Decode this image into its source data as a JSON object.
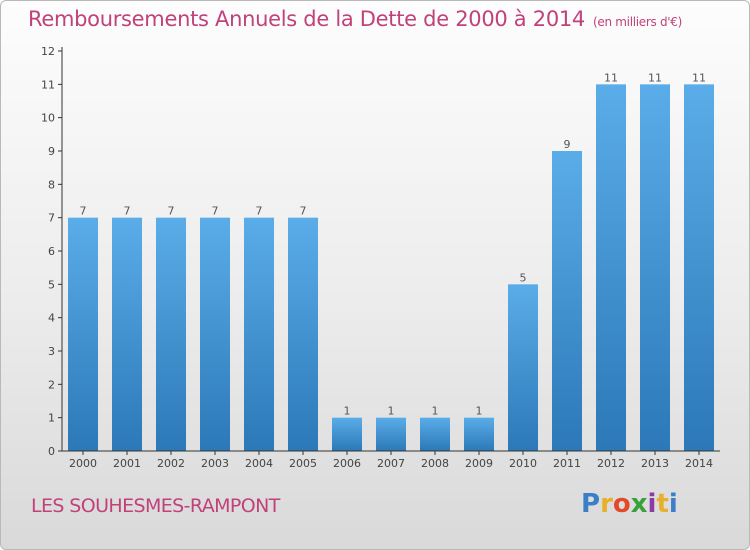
{
  "header": {
    "title": "Remboursements Annuels de la Dette de 2000 à 2014",
    "subtitle": "(en milliers d'€)"
  },
  "footer": {
    "commune": "LES SOUHESMES-RAMPONT",
    "brand": "Proxiti",
    "brand_colors": [
      "#3a7fc8",
      "#e8b02a",
      "#e24a2a",
      "#3aa13a",
      "#8e3aa6",
      "#e8b02a",
      "#3a7fc8"
    ]
  },
  "colors": {
    "bar_top": "#5aade8",
    "bar_bottom": "#2c78b8",
    "axis": "#333333",
    "grid": "#cccccc"
  },
  "chart_data": {
    "type": "bar",
    "title": "Remboursements Annuels de la Dette de 2000 à 2014",
    "subtitle": "(en milliers d'€)",
    "xlabel": "",
    "ylabel": "",
    "categories": [
      "2000",
      "2001",
      "2002",
      "2003",
      "2004",
      "2005",
      "2006",
      "2007",
      "2008",
      "2009",
      "2010",
      "2011",
      "2012",
      "2013",
      "2014"
    ],
    "values": [
      7,
      7,
      7,
      7,
      7,
      7,
      1,
      1,
      1,
      1,
      5,
      9,
      11,
      11,
      11
    ],
    "value_labels": [
      "7",
      "7",
      "7",
      "7",
      "7",
      "7",
      "1",
      "1",
      "1",
      "1",
      "5",
      "9",
      "11",
      "11",
      "11"
    ],
    "ylim": [
      0,
      12
    ],
    "yticks": [
      "0",
      "1",
      "2",
      "3",
      "4",
      "5",
      "6",
      "7",
      "8",
      "9",
      "10",
      "11",
      "12"
    ],
    "grid": false,
    "legend": "none"
  }
}
